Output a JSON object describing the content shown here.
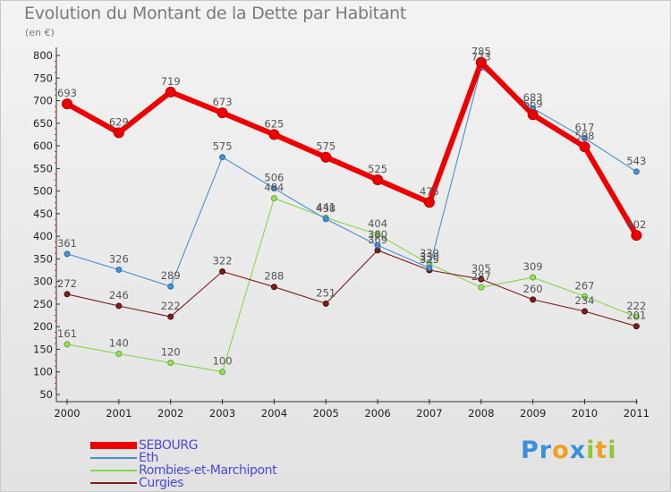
{
  "title": "Evolution du Montant de la Dette par Habitant",
  "subtitle": "(en €)",
  "logo": {
    "text": "Proxiti",
    "letters": [
      {
        "ch": "P",
        "color": "#3a8fd8"
      },
      {
        "ch": "r",
        "color": "#3a8fd8"
      },
      {
        "ch": "o",
        "color": "#f0a020"
      },
      {
        "ch": "x",
        "color": "#3a8fd8"
      },
      {
        "ch": "i",
        "color": "#8ac83c"
      },
      {
        "ch": "t",
        "color": "#f0a020"
      },
      {
        "ch": "i",
        "color": "#8ac83c"
      }
    ]
  },
  "chart_data": {
    "type": "line",
    "title": "Evolution du Montant de la Dette par Habitant",
    "subtitle": "(en €)",
    "x": [
      "2000",
      "2001",
      "2002",
      "2003",
      "2004",
      "2005",
      "2006",
      "2007",
      "2008",
      "2009",
      "2010",
      "2011"
    ],
    "ylim": [
      50,
      800
    ],
    "yticks": [
      50,
      100,
      150,
      200,
      250,
      300,
      350,
      400,
      450,
      500,
      550,
      600,
      650,
      700,
      750,
      800
    ],
    "grid": false,
    "legend_position": "bottom-left",
    "series": [
      {
        "name": "SEBOURG",
        "color": "#ee0000",
        "values": [
          693,
          629,
          719,
          673,
          625,
          575,
          525,
          475,
          785,
          669,
          598,
          402
        ],
        "labels": [
          "693",
          "629",
          "719",
          "673",
          "625",
          "575",
          "525",
          "475",
          "785",
          "669",
          "598",
          "402"
        ]
      },
      {
        "name": "Eth",
        "color": "#4a8fd0",
        "values": [
          361,
          326,
          289,
          575,
          506,
          438,
          380,
          330,
          773,
          683,
          617,
          543
        ],
        "labels": [
          "361",
          "326",
          "289",
          "575",
          "506",
          "438",
          "380",
          "330",
          "773",
          "683",
          "617",
          "543"
        ]
      },
      {
        "name": "Rombies-et-Marchipont",
        "color": "#88d64a",
        "values": [
          161,
          140,
          120,
          100,
          484,
          441,
          404,
          339,
          287,
          309,
          267,
          222
        ],
        "labels": [
          "161",
          "140",
          "120",
          "100",
          "484",
          "441",
          "404",
          "339",
          "287",
          "309",
          "267",
          "222"
        ]
      },
      {
        "name": "Curgies",
        "color": "#7a1e1e",
        "values": [
          272,
          246,
          222,
          322,
          288,
          251,
          369,
          325,
          305,
          260,
          234,
          201
        ],
        "labels": [
          "272",
          "246",
          "222",
          "322",
          "288",
          "251",
          "369",
          "325",
          "305",
          "260",
          "234",
          "201"
        ]
      }
    ]
  }
}
